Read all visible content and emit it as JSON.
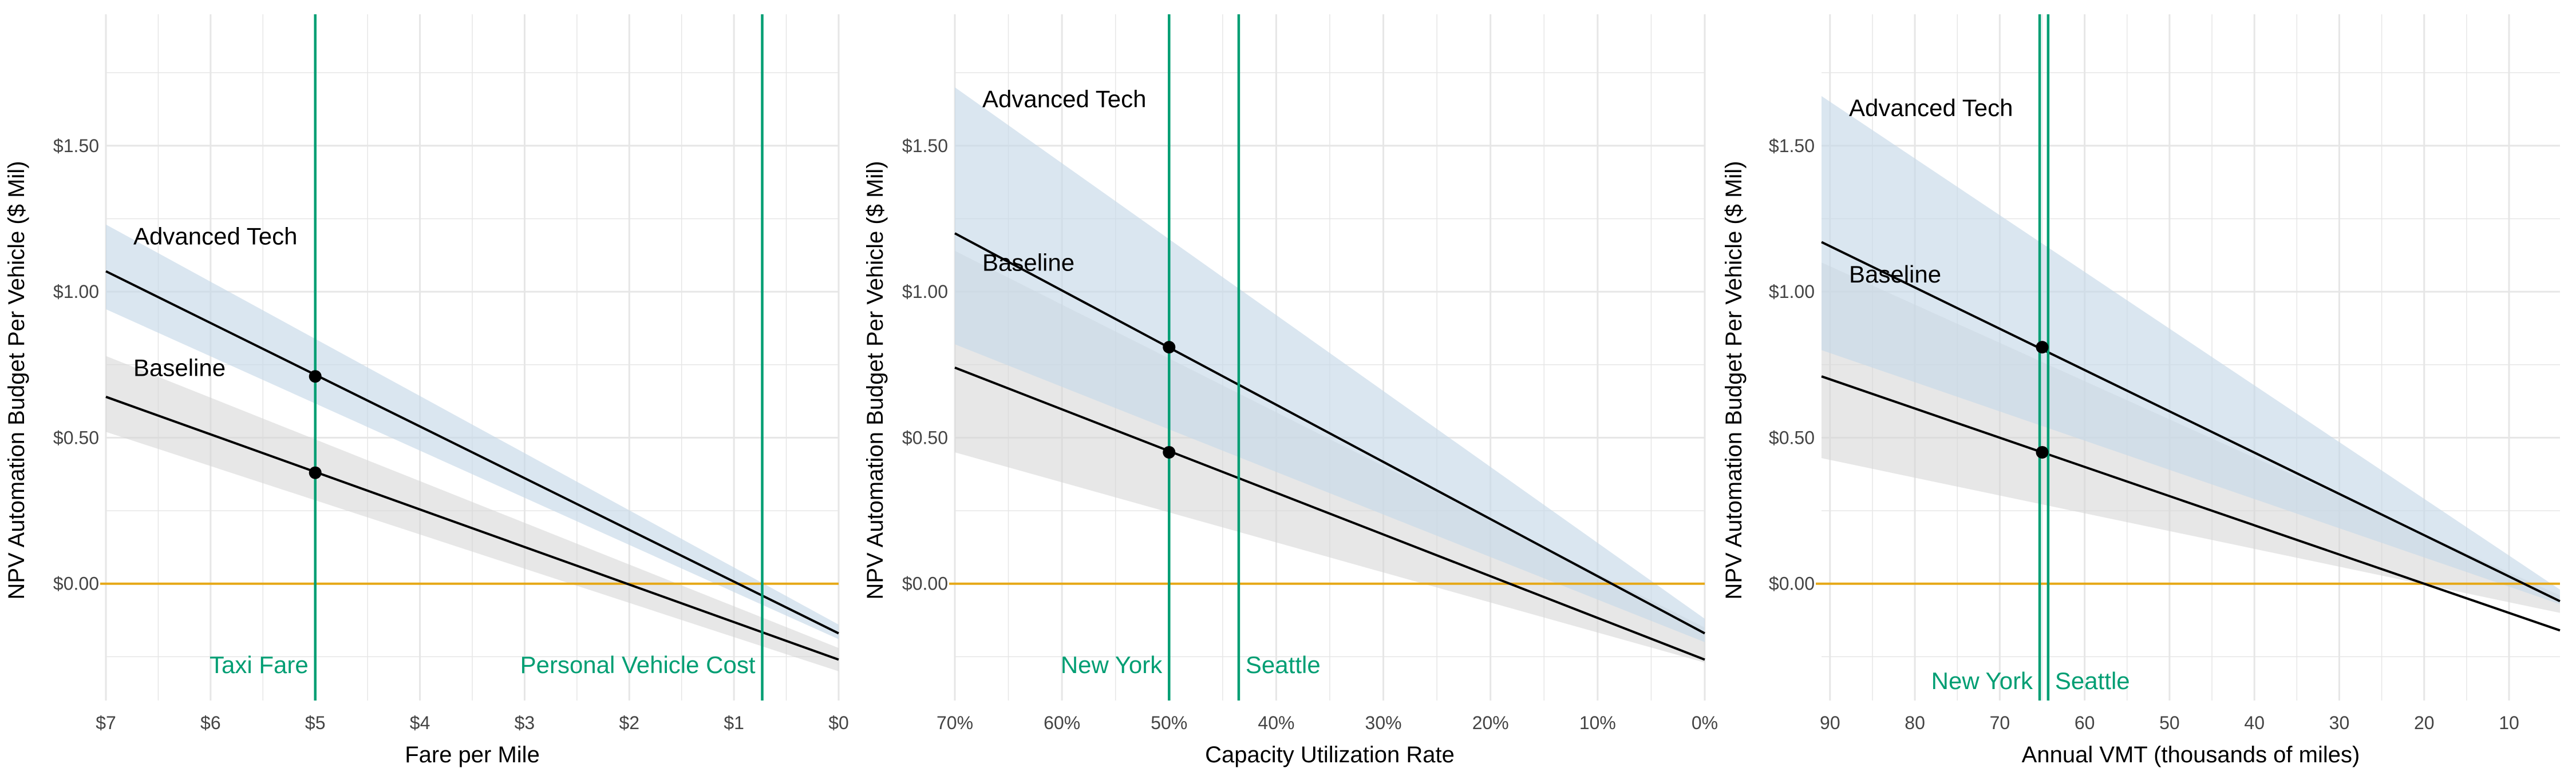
{
  "colors": {
    "band_advanced": "#c6d8e8",
    "band_baseline": "#d3d3d3",
    "line": "#000000",
    "zero_line": "#e6a817",
    "reference_line": "#009e73",
    "grid": "#e6e6e6"
  },
  "chart_data": [
    {
      "type": "line",
      "xlabel": "Fare per Mile",
      "ylabel": "NPV Automation Budget Per Vehicle ($ Mil)",
      "xlim": [
        7,
        0
      ],
      "ylim": [
        -0.4,
        1.95
      ],
      "xticks": [
        7,
        6,
        5,
        4,
        3,
        2,
        1,
        0
      ],
      "xtick_labels": [
        "$7",
        "$6",
        "$5",
        "$4",
        "$3",
        "$2",
        "$1",
        "$0"
      ],
      "yticks": [
        0,
        0.5,
        1,
        1.5
      ],
      "ytick_labels": [
        "$0.00",
        "$0.50",
        "$1.00",
        "$1.50"
      ],
      "zero_line": 0,
      "series": [
        {
          "name": "Baseline",
          "x": [
            7,
            0
          ],
          "y": [
            0.64,
            -0.26
          ],
          "band_x": [
            7,
            0
          ],
          "band_lower": [
            0.52,
            -0.3
          ],
          "band_upper": [
            0.78,
            -0.22
          ],
          "point": {
            "x": 5,
            "y": 0.38
          }
        },
        {
          "name": "Advanced Tech",
          "x": [
            7,
            0
          ],
          "y": [
            1.07,
            -0.17
          ],
          "band_x": [
            7,
            0
          ],
          "band_lower": [
            0.94,
            -0.19
          ],
          "band_upper": [
            1.23,
            -0.14
          ],
          "point": {
            "x": 5,
            "y": 0.71
          }
        }
      ],
      "reference_lines": [
        {
          "x": 5,
          "label": "Taxi Fare",
          "side": "left"
        },
        {
          "x": 0.73,
          "label": "Personal Vehicle Cost",
          "side": "left"
        }
      ]
    },
    {
      "type": "line",
      "xlabel": "Capacity Utilization Rate",
      "ylabel": "NPV Automation Budget Per Vehicle ($ Mil)",
      "xlim": [
        70,
        0
      ],
      "ylim": [
        -0.4,
        1.95
      ],
      "xticks": [
        70,
        60,
        50,
        40,
        30,
        20,
        10,
        0
      ],
      "xtick_labels": [
        "70%",
        "60%",
        "50%",
        "40%",
        "30%",
        "20%",
        "10%",
        "0%"
      ],
      "yticks": [
        0,
        0.5,
        1,
        1.5
      ],
      "ytick_labels": [
        "$0.00",
        "$0.50",
        "$1.00",
        "$1.50"
      ],
      "zero_line": 0,
      "series": [
        {
          "name": "Baseline",
          "x": [
            70,
            0
          ],
          "y": [
            0.74,
            -0.26
          ],
          "band_x": [
            70,
            0
          ],
          "band_lower": [
            0.45,
            -0.27
          ],
          "band_upper": [
            1.14,
            -0.15
          ],
          "point": {
            "x": 50,
            "y": 0.45
          }
        },
        {
          "name": "Advanced Tech",
          "x": [
            70,
            0
          ],
          "y": [
            1.2,
            -0.17
          ],
          "band_x": [
            70,
            0
          ],
          "band_lower": [
            0.82,
            -0.2
          ],
          "band_upper": [
            1.7,
            -0.12
          ],
          "point": {
            "x": 50,
            "y": 0.81
          }
        }
      ],
      "reference_lines": [
        {
          "x": 50,
          "label": "New York",
          "side": "left"
        },
        {
          "x": 43.5,
          "label": "Seattle",
          "side": "right"
        }
      ]
    },
    {
      "type": "line",
      "xlabel": "Annual VMT (thousands of miles)",
      "ylabel": "NPV Automation Budget Per Vehicle ($ Mil)",
      "xlim": [
        91,
        4
      ],
      "ylim": [
        -0.4,
        1.95
      ],
      "xticks": [
        90,
        80,
        70,
        60,
        50,
        40,
        30,
        20,
        10
      ],
      "xtick_labels": [
        "90",
        "80",
        "70",
        "60",
        "50",
        "40",
        "30",
        "20",
        "10"
      ],
      "yticks": [
        0,
        0.5,
        1,
        1.5
      ],
      "ytick_labels": [
        "$0.00",
        "$0.50",
        "$1.00",
        "$1.50"
      ],
      "zero_line": 0,
      "series": [
        {
          "name": "Baseline",
          "x": [
            91,
            4
          ],
          "y": [
            0.71,
            -0.16
          ],
          "band_x": [
            91,
            4
          ],
          "band_lower": [
            0.43,
            -0.1
          ],
          "band_upper": [
            1.1,
            -0.04
          ],
          "point": {
            "x": 65,
            "y": 0.45
          }
        },
        {
          "name": "Advanced Tech",
          "x": [
            91,
            4
          ],
          "y": [
            1.17,
            -0.06
          ],
          "band_x": [
            91,
            4
          ],
          "band_lower": [
            0.8,
            -0.07
          ],
          "band_upper": [
            1.67,
            -0.02
          ],
          "point": {
            "x": 65,
            "y": 0.81
          }
        }
      ],
      "reference_lines": [
        {
          "x": 65.3,
          "label": "New York",
          "side": "left"
        },
        {
          "x": 64.3,
          "label": "Seattle",
          "side": "right"
        }
      ]
    }
  ]
}
